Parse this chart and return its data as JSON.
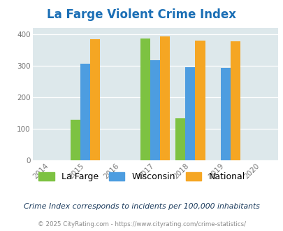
{
  "title": "La Farge Violent Crime Index",
  "years": [
    2014,
    2015,
    2016,
    2017,
    2018,
    2019,
    2020
  ],
  "bar_years": [
    2015,
    2017,
    2018,
    2019
  ],
  "lafarge_values": [
    130,
    387,
    133,
    0
  ],
  "wisconsin_values": [
    306,
    318,
    296,
    293
  ],
  "national_values": [
    383,
    393,
    380,
    377
  ],
  "color_lafarge": "#7dc242",
  "color_wisconsin": "#4d9de0",
  "color_national": "#f5a623",
  "xlim": [
    2013.5,
    2020.5
  ],
  "ylim": [
    0,
    420
  ],
  "yticks": [
    0,
    100,
    200,
    300,
    400
  ],
  "background_color": "#dde8eb",
  "title_color": "#1a6eb5",
  "subtitle": "Crime Index corresponds to incidents per 100,000 inhabitants",
  "footer": "© 2025 CityRating.com - https://www.cityrating.com/crime-statistics/",
  "bar_width": 0.28,
  "subtitle_color": "#1a3a5c",
  "footer_color": "#888888",
  "tick_color": "#777777"
}
